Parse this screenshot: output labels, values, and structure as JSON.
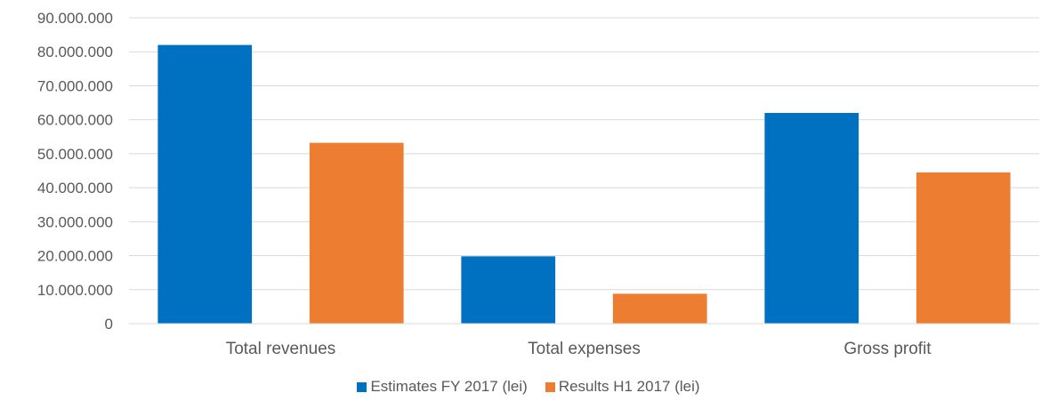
{
  "chart_data": {
    "type": "bar",
    "categories": [
      "Total revenues",
      "Total expenses",
      "Gross profit"
    ],
    "series": [
      {
        "name": "Estimates FY 2017 (lei)",
        "color": "#0070C0",
        "values": [
          82000000,
          19800000,
          62000000
        ]
      },
      {
        "name": "Results H1 2017 (lei)",
        "color": "#ED7D31",
        "values": [
          53200000,
          8800000,
          44500000
        ]
      }
    ],
    "yticks": [
      "0",
      "10.000.000",
      "20.000.000",
      "30.000.000",
      "40.000.000",
      "50.000.000",
      "60.000.000",
      "70.000.000",
      "80.000.000",
      "90.000.000"
    ],
    "ylim": [
      0,
      90000000
    ],
    "grid": true,
    "legend_position": "bottom",
    "title": "",
    "xlabel": "",
    "ylabel": ""
  }
}
